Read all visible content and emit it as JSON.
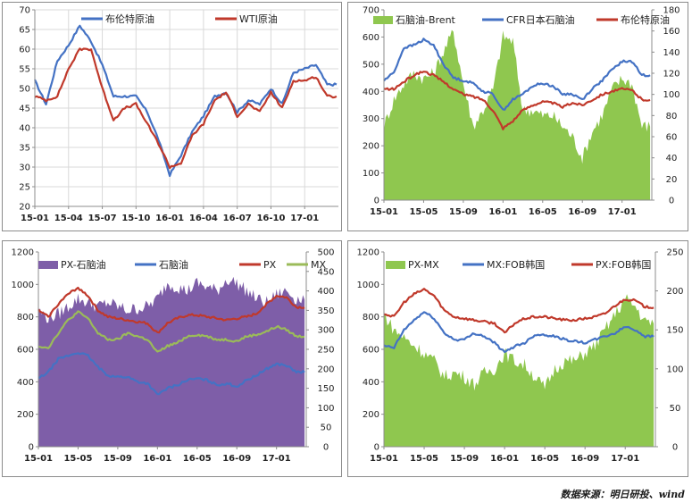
{
  "chart_data": [
    {
      "type": "line",
      "x_ticks": [
        "15-01",
        "15-04",
        "15-07",
        "15-10",
        "16-01",
        "16-04",
        "16-07",
        "16-10",
        "17-01"
      ],
      "ylim": [
        20,
        70
      ],
      "y_ticks": [
        20,
        25,
        30,
        35,
        40,
        45,
        50,
        55,
        60,
        65,
        70
      ],
      "grid": true,
      "legend": "top",
      "series": [
        {
          "name": "布伦特原油",
          "color": "#4472c4",
          "axis": "left",
          "x": [
            "15-01",
            "15-02",
            "15-03",
            "15-04",
            "15-05",
            "15-06",
            "15-07",
            "15-08",
            "15-09",
            "15-10",
            "15-11",
            "15-12",
            "16-01",
            "16-02",
            "16-03",
            "16-04",
            "16-05",
            "16-06",
            "16-07",
            "16-08",
            "16-09",
            "16-10",
            "16-11",
            "16-12",
            "17-01",
            "17-02",
            "17-03"
          ],
          "values": [
            52,
            46,
            57,
            61,
            66,
            62,
            56,
            48,
            48,
            48,
            44,
            37,
            28,
            33,
            39,
            43,
            48,
            49,
            44,
            47,
            46,
            50,
            46,
            54,
            55,
            56,
            51
          ]
        },
        {
          "name": "WTI原油",
          "color": "#c0392b",
          "axis": "left",
          "x": [
            "15-01",
            "15-02",
            "15-03",
            "15-04",
            "15-05",
            "15-06",
            "15-07",
            "15-08",
            "15-09",
            "15-10",
            "15-11",
            "15-12",
            "16-01",
            "16-02",
            "16-03",
            "16-04",
            "16-05",
            "16-06",
            "16-07",
            "16-08",
            "16-09",
            "16-10",
            "16-11",
            "16-12",
            "17-01",
            "17-02",
            "17-03"
          ],
          "values": [
            48,
            47,
            48,
            55,
            60,
            60,
            50,
            42,
            45,
            46,
            41,
            36,
            30,
            31,
            38,
            41,
            47,
            49,
            43,
            46,
            44,
            49,
            45,
            52,
            52,
            53,
            48
          ]
        }
      ]
    },
    {
      "type": "line",
      "x_ticks": [
        "15-01",
        "15-05",
        "15-09",
        "16-01",
        "16-05",
        "16-09",
        "17-01"
      ],
      "ylim": [
        0,
        700
      ],
      "y_ticks": [
        0,
        100,
        200,
        300,
        400,
        500,
        600,
        700
      ],
      "ylim_right": [
        0,
        180
      ],
      "y_ticks_right": [
        0,
        20,
        40,
        60,
        80,
        100,
        120,
        140,
        160,
        180
      ],
      "grid": false,
      "legend": "top",
      "series": [
        {
          "name": "石脑油-Brent",
          "type": "area",
          "color": "#8fc74f",
          "axis": "right",
          "x": [
            "15-01",
            "15-02",
            "15-03",
            "15-04",
            "15-05",
            "15-06",
            "15-07",
            "15-08",
            "15-09",
            "15-10",
            "15-11",
            "15-12",
            "16-01",
            "16-02",
            "16-03",
            "16-04",
            "16-05",
            "16-06",
            "16-07",
            "16-08",
            "16-09",
            "16-10",
            "16-11",
            "16-12",
            "17-01",
            "17-02",
            "17-03"
          ],
          "values": [
            70,
            95,
            110,
            120,
            115,
            120,
            140,
            160,
            110,
            70,
            85,
            105,
            155,
            150,
            85,
            85,
            80,
            80,
            70,
            60,
            40,
            65,
            80,
            105,
            115,
            110,
            70
          ]
        },
        {
          "name": "CFR日本石脑油",
          "color": "#4472c4",
          "axis": "left",
          "x": [
            "15-01",
            "15-02",
            "15-03",
            "15-04",
            "15-05",
            "15-06",
            "15-07",
            "15-08",
            "15-09",
            "15-10",
            "15-11",
            "15-12",
            "16-01",
            "16-02",
            "16-03",
            "16-04",
            "16-05",
            "16-06",
            "16-07",
            "16-08",
            "16-09",
            "16-10",
            "16-11",
            "16-12",
            "17-01",
            "17-02",
            "17-03"
          ],
          "values": [
            440,
            470,
            560,
            570,
            590,
            570,
            500,
            450,
            440,
            430,
            400,
            390,
            330,
            370,
            390,
            420,
            430,
            420,
            390,
            390,
            370,
            410,
            440,
            480,
            510,
            510,
            460
          ]
        },
        {
          "name": "布伦特原油",
          "color": "#c0392b",
          "axis": "right",
          "x": [
            "15-01",
            "15-02",
            "15-03",
            "15-04",
            "15-05",
            "15-06",
            "15-07",
            "15-08",
            "15-09",
            "15-10",
            "15-11",
            "15-12",
            "16-01",
            "16-02",
            "16-03",
            "16-04",
            "16-05",
            "16-06",
            "16-07",
            "16-08",
            "16-09",
            "16-10",
            "16-11",
            "16-12",
            "17-01",
            "17-02",
            "17-03"
          ],
          "values": [
            105,
            105,
            112,
            118,
            122,
            118,
            112,
            105,
            100,
            98,
            95,
            85,
            68,
            75,
            85,
            90,
            93,
            92,
            88,
            92,
            90,
            95,
            100,
            103,
            105,
            104,
            95
          ]
        }
      ]
    },
    {
      "type": "line",
      "x_ticks": [
        "15-01",
        "15-05",
        "15-09",
        "16-01",
        "16-05",
        "16-09",
        "17-01"
      ],
      "ylim": [
        0,
        1200
      ],
      "y_ticks": [
        0,
        200,
        400,
        600,
        800,
        1000,
        1200
      ],
      "ylim_right": [
        0,
        500
      ],
      "y_ticks_right": [
        0,
        50,
        100,
        150,
        200,
        250,
        300,
        350,
        400,
        450,
        500
      ],
      "grid": false,
      "legend": "top",
      "series": [
        {
          "name": "PX-石脑油",
          "type": "area",
          "color": "#7e5ea8",
          "axis": "right",
          "x": [
            "15-01",
            "15-02",
            "15-03",
            "15-04",
            "15-05",
            "15-06",
            "15-07",
            "15-08",
            "15-09",
            "15-10",
            "15-11",
            "15-12",
            "16-01",
            "16-02",
            "16-03",
            "16-04",
            "16-05",
            "16-06",
            "16-07",
            "16-08",
            "16-09",
            "16-10",
            "16-11",
            "16-12",
            "17-01",
            "17-02",
            "17-03"
          ],
          "values": [
            350,
            330,
            340,
            360,
            380,
            370,
            360,
            370,
            360,
            350,
            355,
            360,
            380,
            420,
            410,
            400,
            420,
            410,
            400,
            430,
            420,
            400,
            380,
            370,
            390,
            400,
            380
          ]
        },
        {
          "name": "石脑油",
          "color": "#4472c4",
          "axis": "left",
          "x": [
            "15-01",
            "15-02",
            "15-03",
            "15-04",
            "15-05",
            "15-06",
            "15-07",
            "15-08",
            "15-09",
            "15-10",
            "15-11",
            "15-12",
            "16-01",
            "16-02",
            "16-03",
            "16-04",
            "16-05",
            "16-06",
            "16-07",
            "16-08",
            "16-09",
            "16-10",
            "16-11",
            "16-12",
            "17-01",
            "17-02",
            "17-03"
          ],
          "values": [
            420,
            460,
            540,
            560,
            580,
            560,
            490,
            440,
            430,
            430,
            400,
            390,
            320,
            360,
            380,
            410,
            420,
            410,
            380,
            390,
            370,
            410,
            440,
            480,
            510,
            500,
            460
          ]
        },
        {
          "name": "PX",
          "color": "#c0392b",
          "axis": "left",
          "x": [
            "15-01",
            "15-02",
            "15-03",
            "15-04",
            "15-05",
            "15-06",
            "15-07",
            "15-08",
            "15-09",
            "15-10",
            "15-11",
            "15-12",
            "16-01",
            "16-02",
            "16-03",
            "16-04",
            "16-05",
            "16-06",
            "16-07",
            "16-08",
            "16-09",
            "16-10",
            "16-11",
            "16-12",
            "17-01",
            "17-02",
            "17-03"
          ],
          "values": [
            840,
            800,
            880,
            940,
            980,
            930,
            840,
            800,
            790,
            780,
            770,
            760,
            700,
            760,
            790,
            810,
            810,
            800,
            790,
            780,
            790,
            800,
            820,
            880,
            930,
            920,
            860
          ]
        },
        {
          "name": "MX",
          "color": "#9bbb59",
          "axis": "left",
          "x": [
            "15-01",
            "15-02",
            "15-03",
            "15-04",
            "15-05",
            "15-06",
            "15-07",
            "15-08",
            "15-09",
            "15-10",
            "15-11",
            "15-12",
            "16-01",
            "16-02",
            "16-03",
            "16-04",
            "16-05",
            "16-06",
            "16-07",
            "16-08",
            "16-09",
            "16-10",
            "16-11",
            "16-12",
            "17-01",
            "17-02",
            "17-03"
          ],
          "values": [
            620,
            610,
            700,
            780,
            830,
            790,
            700,
            660,
            660,
            700,
            680,
            660,
            580,
            620,
            640,
            680,
            690,
            680,
            660,
            660,
            650,
            680,
            690,
            710,
            740,
            720,
            680
          ]
        }
      ]
    },
    {
      "type": "line",
      "x_ticks": [
        "15-01",
        "15-05",
        "15-09",
        "16-01",
        "16-05",
        "16-09",
        "17-01"
      ],
      "ylim": [
        0,
        1200
      ],
      "y_ticks": [
        0,
        200,
        400,
        600,
        800,
        1000,
        1200
      ],
      "ylim_right": [
        0,
        250
      ],
      "y_ticks_right": [
        0,
        50,
        100,
        150,
        200,
        250
      ],
      "grid": false,
      "legend": "top",
      "series": [
        {
          "name": "PX-MX",
          "type": "area",
          "color": "#8fc74f",
          "axis": "right",
          "x": [
            "15-01",
            "15-02",
            "15-03",
            "15-04",
            "15-05",
            "15-06",
            "15-07",
            "15-08",
            "15-09",
            "15-10",
            "15-11",
            "15-12",
            "16-01",
            "16-02",
            "16-03",
            "16-04",
            "16-05",
            "16-06",
            "16-07",
            "16-08",
            "16-09",
            "16-10",
            "16-11",
            "16-12",
            "17-01",
            "17-02",
            "17-03"
          ],
          "values": [
            170,
            150,
            140,
            130,
            120,
            110,
            90,
            95,
            90,
            80,
            95,
            100,
            120,
            110,
            105,
            90,
            75,
            100,
            110,
            110,
            120,
            130,
            150,
            170,
            190,
            180,
            160
          ]
        },
        {
          "name": "MX:FOB韩国",
          "color": "#4472c4",
          "axis": "left",
          "x": [
            "15-01",
            "15-02",
            "15-03",
            "15-04",
            "15-05",
            "15-06",
            "15-07",
            "15-08",
            "15-09",
            "15-10",
            "15-11",
            "15-12",
            "16-01",
            "16-02",
            "16-03",
            "16-04",
            "16-05",
            "16-06",
            "16-07",
            "16-08",
            "16-09",
            "16-10",
            "16-11",
            "16-12",
            "17-01",
            "17-02",
            "17-03"
          ],
          "values": [
            620,
            610,
            720,
            780,
            830,
            790,
            700,
            660,
            660,
            700,
            680,
            640,
            580,
            620,
            640,
            690,
            690,
            680,
            660,
            650,
            640,
            660,
            680,
            700,
            740,
            720,
            680
          ]
        },
        {
          "name": "PX:FOB韩国",
          "color": "#c0392b",
          "axis": "left",
          "x": [
            "15-01",
            "15-02",
            "15-03",
            "15-04",
            "15-05",
            "15-06",
            "15-07",
            "15-08",
            "15-09",
            "15-10",
            "15-11",
            "15-12",
            "16-01",
            "16-02",
            "16-03",
            "16-04",
            "16-05",
            "16-06",
            "16-07",
            "16-08",
            "16-09",
            "16-10",
            "16-11",
            "16-12",
            "17-01",
            "17-02",
            "17-03"
          ],
          "values": [
            820,
            800,
            890,
            940,
            970,
            930,
            840,
            800,
            790,
            780,
            770,
            760,
            700,
            760,
            790,
            800,
            800,
            790,
            780,
            780,
            790,
            800,
            820,
            870,
            910,
            900,
            860
          ]
        }
      ]
    }
  ],
  "source": "数据来源：明日研投、wind"
}
